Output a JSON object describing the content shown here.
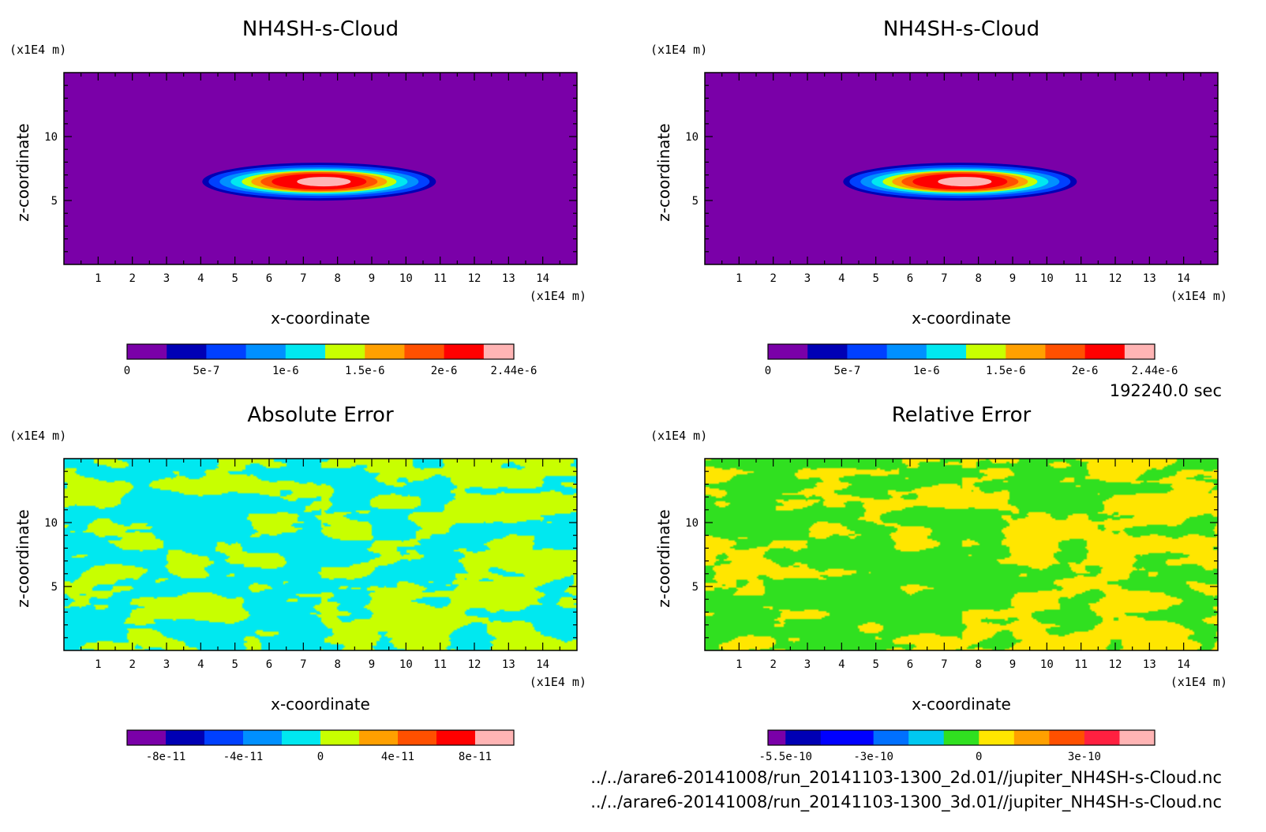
{
  "chart_data": [
    {
      "type": "heatmap",
      "title": "NH4SH-s-Cloud",
      "xlabel": "x-coordinate",
      "ylabel": "z-coordinate",
      "x_unit": "(x1E4 m)",
      "y_unit": "(x1E4 m)",
      "xlim": [
        0,
        15
      ],
      "ylim": [
        0,
        15
      ],
      "x_ticks": [
        "1",
        "2",
        "3",
        "4",
        "5",
        "6",
        "7",
        "8",
        "9",
        "10",
        "11",
        "12",
        "13",
        "14"
      ],
      "y_ticks": [
        "5",
        "10"
      ],
      "field": "cloud",
      "cloud_peak": {
        "x": 7.6,
        "z": 6.6,
        "value": 2.44e-06
      },
      "colorbar": {
        "levels": [
          0,
          2.5e-07,
          5e-07,
          7.5e-07,
          1e-06,
          1.25e-06,
          1.5e-06,
          1.75e-06,
          2e-06,
          2.25e-06,
          2.44e-06
        ],
        "labels": [
          "0",
          "5e-7",
          "1e-6",
          "1.5e-6",
          "2e-6",
          "2.44e-6"
        ],
        "colors": [
          "#7a00a8",
          "#0000b4",
          "#0040ff",
          "#0090ff",
          "#00e8f0",
          "#c8ff00",
          "#ffa000",
          "#ff5000",
          "#ff0000",
          "#ffb4b4"
        ]
      }
    },
    {
      "type": "heatmap",
      "title": "NH4SH-s-Cloud",
      "xlabel": "x-coordinate",
      "ylabel": "z-coordinate",
      "x_unit": "(x1E4 m)",
      "y_unit": "(x1E4 m)",
      "xlim": [
        0,
        15
      ],
      "ylim": [
        0,
        15
      ],
      "x_ticks": [
        "1",
        "2",
        "3",
        "4",
        "5",
        "6",
        "7",
        "8",
        "9",
        "10",
        "11",
        "12",
        "13",
        "14"
      ],
      "y_ticks": [
        "5",
        "10"
      ],
      "field": "cloud",
      "cloud_peak": {
        "x": 7.6,
        "z": 6.6,
        "value": 2.44e-06
      },
      "colorbar": {
        "levels": [
          0,
          2.5e-07,
          5e-07,
          7.5e-07,
          1e-06,
          1.25e-06,
          1.5e-06,
          1.75e-06,
          2e-06,
          2.25e-06,
          2.44e-06
        ],
        "labels": [
          "0",
          "5e-7",
          "1e-6",
          "1.5e-6",
          "2e-6",
          "2.44e-6"
        ],
        "colors": [
          "#7a00a8",
          "#0000b4",
          "#0040ff",
          "#0090ff",
          "#00e8f0",
          "#c8ff00",
          "#ffa000",
          "#ff5000",
          "#ff0000",
          "#ffb4b4"
        ]
      }
    },
    {
      "type": "heatmap",
      "title": "Absolute Error",
      "xlabel": "x-coordinate",
      "ylabel": "z-coordinate",
      "x_unit": "(x1E4 m)",
      "y_unit": "(x1E4 m)",
      "xlim": [
        0,
        15
      ],
      "ylim": [
        0,
        15
      ],
      "x_ticks": [
        "1",
        "2",
        "3",
        "4",
        "5",
        "6",
        "7",
        "8",
        "9",
        "10",
        "11",
        "12",
        "13",
        "14"
      ],
      "y_ticks": [
        "5",
        "10"
      ],
      "field": "noise",
      "noise_colors": [
        "#c8ff00",
        "#00e8f0"
      ],
      "colorbar": {
        "levels": [
          -1e-10,
          -8e-11,
          -6e-11,
          -4e-11,
          -2e-11,
          0,
          2e-11,
          4e-11,
          6e-11,
          8e-11,
          1e-10
        ],
        "labels": [
          "-8e-11",
          "-4e-11",
          "0",
          "4e-11",
          "8e-11"
        ],
        "colors": [
          "#7a00a8",
          "#0000b4",
          "#0040ff",
          "#0090ff",
          "#00e8f0",
          "#c8ff00",
          "#ffa000",
          "#ff5000",
          "#ff0000",
          "#ffb4b4"
        ]
      }
    },
    {
      "type": "heatmap",
      "title": "Relative Error",
      "xlabel": "x-coordinate",
      "ylabel": "z-coordinate",
      "x_unit": "(x1E4 m)",
      "y_unit": "(x1E4 m)",
      "xlim": [
        0,
        15
      ],
      "ylim": [
        0,
        15
      ],
      "x_ticks": [
        "1",
        "2",
        "3",
        "4",
        "5",
        "6",
        "7",
        "8",
        "9",
        "10",
        "11",
        "12",
        "13",
        "14"
      ],
      "y_ticks": [
        "5",
        "10"
      ],
      "field": "noise",
      "noise_colors": [
        "#ffe600",
        "#30e020"
      ],
      "colorbar": {
        "levels": [
          -6e-10,
          -5.5e-10,
          -4.5e-10,
          -3e-10,
          -2e-10,
          -1e-10,
          0,
          1e-10,
          2e-10,
          3e-10,
          4e-10,
          5e-10
        ],
        "labels": [
          "-5.5e-10",
          "-3e-10",
          "0",
          "3e-10"
        ],
        "colors": [
          "#7a00a8",
          "#0000b4",
          "#0000ff",
          "#0070ff",
          "#00c8f0",
          "#30e020",
          "#ffe600",
          "#ffa000",
          "#ff5000",
          "#ff2040",
          "#ffb4b4"
        ]
      }
    }
  ],
  "time_label": "192240.0 sec",
  "footer": [
    "../../arare6-20141008/run_20141103-1300_2d.01//jupiter_NH4SH-s-Cloud.nc",
    "../../arare6-20141008/run_20141103-1300_3d.01//jupiter_NH4SH-s-Cloud.nc"
  ]
}
